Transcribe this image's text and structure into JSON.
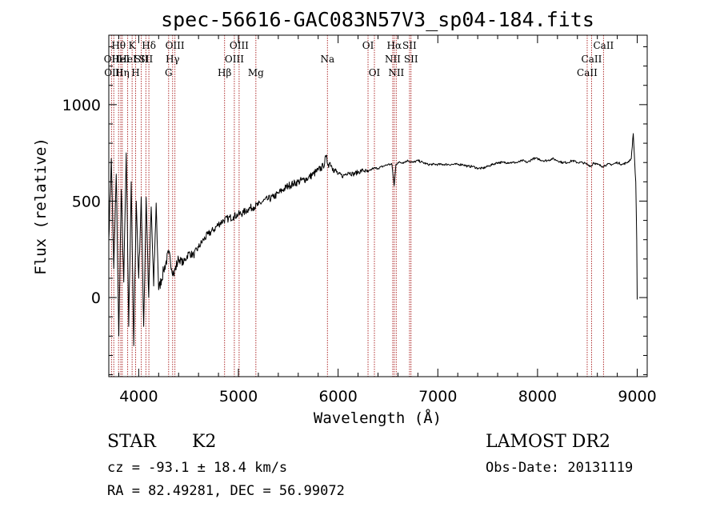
{
  "chart_data": {
    "type": "line",
    "title": "spec-56616-GAC083N57V3_sp04-184.fits",
    "xlabel": "Wavelength (Å)",
    "ylabel": "Flux (relative)",
    "xlim": [
      3700,
      9100
    ],
    "ylim": [
      -410,
      1360
    ],
    "x_ticks": [
      4000,
      5000,
      6000,
      7000,
      8000,
      9000
    ],
    "x_tick_labels": [
      "4000",
      "5000",
      "6000",
      "7000",
      "8000",
      "9000"
    ],
    "y_ticks": [
      0,
      500,
      1000
    ],
    "y_tick_labels": [
      "0",
      "500",
      "1000"
    ],
    "grid": false,
    "series": [
      {
        "x": [
          3700,
          3725,
          3750,
          3775,
          3800,
          3825,
          3850,
          3875,
          3900,
          3925,
          3950,
          3975,
          4000,
          4025,
          4050,
          4075,
          4100,
          4125,
          4150,
          4175,
          4200,
          4250,
          4300,
          4350,
          4400,
          4450,
          4500,
          4550,
          4600,
          4650,
          4700,
          4750,
          4800,
          4850,
          4900,
          4950,
          5000,
          5050,
          5100,
          5150,
          5200,
          5250,
          5300,
          5350,
          5400,
          5450,
          5500,
          5550,
          5600,
          5650,
          5700,
          5750,
          5800,
          5850,
          5880,
          5900,
          5920,
          5950,
          6000,
          6050,
          6100,
          6150,
          6200,
          6250,
          6300,
          6350,
          6400,
          6450,
          6500,
          6540,
          6562,
          6580,
          6600,
          6650,
          6700,
          6750,
          6800,
          6850,
          6900,
          6950,
          7000,
          7050,
          7100,
          7150,
          7200,
          7250,
          7300,
          7350,
          7400,
          7450,
          7500,
          7550,
          7600,
          7650,
          7700,
          7750,
          7800,
          7850,
          7900,
          7950,
          8000,
          8050,
          8100,
          8150,
          8200,
          8250,
          8300,
          8350,
          8400,
          8450,
          8500,
          8542,
          8560,
          8600,
          8650,
          8700,
          8750,
          8800,
          8850,
          8900,
          8940,
          8960,
          8975,
          8985,
          8995,
          9000
        ],
        "y": [
          300,
          720,
          150,
          640,
          -200,
          560,
          80,
          750,
          -150,
          600,
          -250,
          500,
          100,
          520,
          -150,
          520,
          0,
          470,
          60,
          490,
          40,
          140,
          230,
          120,
          200,
          180,
          230,
          220,
          260,
          300,
          330,
          350,
          380,
          400,
          410,
          420,
          430,
          440,
          460,
          470,
          480,
          500,
          510,
          520,
          540,
          560,
          580,
          590,
          600,
          610,
          620,
          640,
          660,
          680,
          730,
          690,
          700,
          670,
          640,
          630,
          650,
          640,
          650,
          660,
          650,
          670,
          670,
          680,
          690,
          690,
          580,
          690,
          700,
          700,
          710,
          700,
          710,
          700,
          690,
          690,
          690,
          690,
          690,
          690,
          690,
          690,
          680,
          680,
          670,
          670,
          680,
          690,
          700,
          700,
          700,
          700,
          700,
          710,
          700,
          720,
          720,
          710,
          710,
          720,
          710,
          700,
          700,
          710,
          700,
          700,
          690,
          680,
          700,
          690,
          680,
          690,
          690,
          700,
          690,
          700,
          720,
          850,
          700,
          600,
          300,
          -10
        ]
      }
    ],
    "lines": [
      {
        "lambda": 3727,
        "label": "OII",
        "row": 2
      },
      {
        "lambda": 3750,
        "label": "OIII",
        "row": 3
      },
      {
        "lambda": 3798,
        "label": "Hθ",
        "row": 1
      },
      {
        "lambda": 3820,
        "label": "HeI",
        "row": 2
      },
      {
        "lambda": 3835,
        "label": "Hη",
        "row": 3
      },
      {
        "lambda": 3889,
        "label": "HeI",
        "row": 2
      },
      {
        "lambda": 3934,
        "label": "K",
        "row": 1
      },
      {
        "lambda": 3969,
        "label": "H",
        "row": 3
      },
      {
        "lambda": 4026,
        "label": "SII",
        "row": 2
      },
      {
        "lambda": 4072,
        "label": "SII",
        "row": 2
      },
      {
        "lambda": 4102,
        "label": "Hδ",
        "row": 1
      },
      {
        "lambda": 4300,
        "label": "G",
        "row": 3
      },
      {
        "lambda": 4340,
        "label": "Hγ",
        "row": 2
      },
      {
        "lambda": 4363,
        "label": "OIII",
        "row": 1
      },
      {
        "lambda": 4861,
        "label": "Hβ",
        "row": 3
      },
      {
        "lambda": 4959,
        "label": "OIII",
        "row": 2
      },
      {
        "lambda": 5007,
        "label": "OIII",
        "row": 1
      },
      {
        "lambda": 5175,
        "label": "Mg",
        "row": 3
      },
      {
        "lambda": 5893,
        "label": "Na",
        "row": 2
      },
      {
        "lambda": 6300,
        "label": "OI",
        "row": 1
      },
      {
        "lambda": 6364,
        "label": "OI",
        "row": 3
      },
      {
        "lambda": 6548,
        "label": "NII",
        "row": 2
      },
      {
        "lambda": 6563,
        "label": "Hα",
        "row": 1
      },
      {
        "lambda": 6583,
        "label": "NII",
        "row": 3
      },
      {
        "lambda": 6716,
        "label": "SII",
        "row": 1
      },
      {
        "lambda": 6731,
        "label": "SII",
        "row": 2
      },
      {
        "lambda": 8498,
        "label": "CaII",
        "row": 3
      },
      {
        "lambda": 8542,
        "label": "CaII",
        "row": 2
      },
      {
        "lambda": 8662,
        "label": "CaII",
        "row": 1
      }
    ],
    "line_color": "#b03030"
  },
  "info": {
    "object_type": "STAR",
    "subclass": "K2",
    "survey": "LAMOST DR2",
    "redshift": "cz = -93.1 ± 18.4 km/s",
    "obs_date": "Obs-Date: 20131119",
    "coords": "RA =  82.49281, DEC =  56.99072"
  }
}
